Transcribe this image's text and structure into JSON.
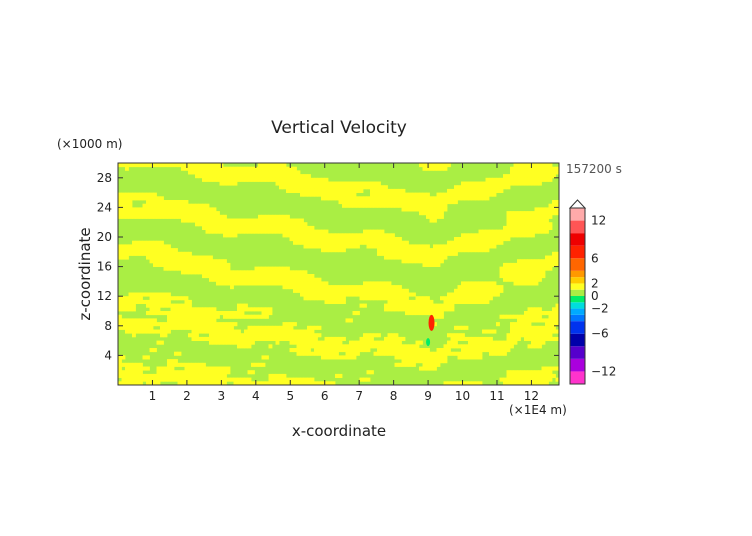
{
  "chart_data": {
    "type": "heatmap",
    "title": "Vertical Velocity",
    "xlabel": "x-coordinate",
    "ylabel": "z-coordinate",
    "x_unit": "(×1E4 m)",
    "y_unit": "(×1000 m)",
    "timestamp": "157200 s",
    "xlim": [
      0,
      12.8
    ],
    "ylim": [
      0,
      30
    ],
    "x_ticks": [
      1,
      2,
      3,
      4,
      5,
      6,
      7,
      8,
      9,
      10,
      11,
      12
    ],
    "y_ticks": [
      4,
      8,
      12,
      16,
      20,
      24,
      28
    ],
    "x_tick_labels": [
      "1",
      "2",
      "3",
      "4",
      "5",
      "6",
      "7",
      "8",
      "9",
      "10",
      "11",
      "12"
    ],
    "y_tick_labels": [
      "4",
      "8",
      "12",
      "16",
      "20",
      "24",
      "28"
    ],
    "colorbar": {
      "min": -14,
      "max": 14,
      "labels": [
        "12",
        "6",
        "2",
        "0",
        "−2",
        "−6",
        "−12"
      ],
      "label_values": [
        12,
        6,
        2,
        0,
        -2,
        -6,
        -12
      ],
      "bins": [
        {
          "from": -14,
          "to": -12,
          "color": "#ff33cc"
        },
        {
          "from": -12,
          "to": -10,
          "color": "#aa00dd"
        },
        {
          "from": -10,
          "to": -8,
          "color": "#5500cc"
        },
        {
          "from": -8,
          "to": -6,
          "color": "#0000aa"
        },
        {
          "from": -6,
          "to": -4,
          "color": "#0033ee"
        },
        {
          "from": -4,
          "to": -3,
          "color": "#0077ff"
        },
        {
          "from": -3,
          "to": -2,
          "color": "#00aaff"
        },
        {
          "from": -2,
          "to": -1,
          "color": "#00dddd"
        },
        {
          "from": -1,
          "to": 0,
          "color": "#00ee66"
        },
        {
          "from": 0,
          "to": 1,
          "color": "#aaee44"
        },
        {
          "from": 1,
          "to": 2,
          "color": "#ffff22"
        },
        {
          "from": 2,
          "to": 3,
          "color": "#ffcc00"
        },
        {
          "from": 3,
          "to": 4,
          "color": "#ff9900"
        },
        {
          "from": 4,
          "to": 6,
          "color": "#ff6600"
        },
        {
          "from": 6,
          "to": 8,
          "color": "#ff2200"
        },
        {
          "from": 8,
          "to": 10,
          "color": "#ee0000"
        },
        {
          "from": 10,
          "to": 12,
          "color": "#ff5555"
        },
        {
          "from": 12,
          "to": 14,
          "color": "#ffaaaa"
        }
      ]
    },
    "field_colors": {
      "positive": "#ffff22",
      "negative": "#aaee44"
    },
    "anomalies": [
      {
        "x": 9.1,
        "z": 8.4,
        "value": 7
      },
      {
        "x": 9.0,
        "z": 5.8,
        "value": -1
      }
    ]
  }
}
